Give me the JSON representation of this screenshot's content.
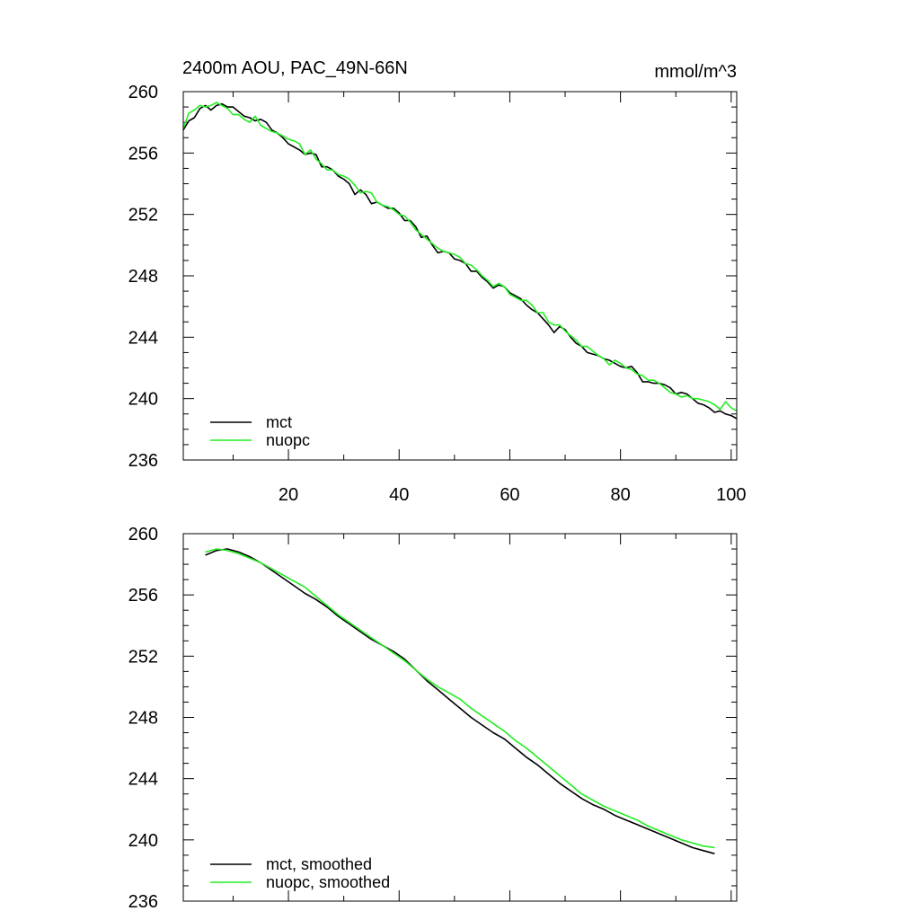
{
  "chart_data": [
    {
      "type": "line",
      "title": "2400m AOU, PAC_49N-66N",
      "units": "mmol/m^3",
      "xlim": [
        1,
        101
      ],
      "ylim": [
        236,
        260
      ],
      "yticks": [
        236,
        240,
        244,
        248,
        252,
        256,
        260
      ],
      "xticks": [
        20,
        40,
        60,
        80,
        100
      ],
      "show_xtick_labels": true,
      "grid": false,
      "legend": "bottom-left",
      "series": [
        {
          "name": "mct",
          "color": "#000000",
          "x": [
            1,
            2,
            3,
            4,
            5,
            6,
            7,
            8,
            9,
            10,
            11,
            12,
            13,
            14,
            15,
            16,
            17,
            18,
            19,
            20,
            21,
            22,
            23,
            24,
            25,
            26,
            27,
            28,
            29,
            30,
            31,
            32,
            33,
            34,
            35,
            36,
            37,
            38,
            39,
            40,
            41,
            42,
            43,
            44,
            45,
            46,
            47,
            48,
            49,
            50,
            51,
            52,
            53,
            54,
            55,
            56,
            57,
            58,
            59,
            60,
            61,
            62,
            63,
            64,
            65,
            66,
            67,
            68,
            69,
            70,
            71,
            72,
            73,
            74,
            75,
            76,
            77,
            78,
            79,
            80,
            81,
            82,
            83,
            84,
            85,
            86,
            87,
            88,
            89,
            90,
            91,
            92,
            93,
            94,
            95,
            96,
            97,
            98,
            99,
            100,
            101
          ],
          "values": [
            257.5,
            258.1,
            258.3,
            258.9,
            259.1,
            258.8,
            259.1,
            259.2,
            259.0,
            259.0,
            258.7,
            258.4,
            258.3,
            258.1,
            258.2,
            258.0,
            257.5,
            257.3,
            257.0,
            256.6,
            256.4,
            256.2,
            255.9,
            256.0,
            255.9,
            255.1,
            255.1,
            254.9,
            254.5,
            254.3,
            254.0,
            253.3,
            253.6,
            253.3,
            252.7,
            252.8,
            252.6,
            252.4,
            252.4,
            252.1,
            251.6,
            251.6,
            251.2,
            250.5,
            250.6,
            250.0,
            249.5,
            249.6,
            249.5,
            249.1,
            249.0,
            248.8,
            248.3,
            248.3,
            247.9,
            247.6,
            247.2,
            247.4,
            247.3,
            246.9,
            246.7,
            246.5,
            246.1,
            245.8,
            245.6,
            245.2,
            244.8,
            244.3,
            244.7,
            244.5,
            244.0,
            243.6,
            243.4,
            243.0,
            242.9,
            242.8,
            242.6,
            242.5,
            242.3,
            242.1,
            242.0,
            242.1,
            241.7,
            241.1,
            241.1,
            241.0,
            241.0,
            240.9,
            240.7,
            240.3,
            240.4,
            240.3,
            240.0,
            239.7,
            239.6,
            239.4,
            239.1,
            239.2,
            239.0,
            238.9,
            238.7
          ]
        },
        {
          "name": "nuopc",
          "color": "#22ee22",
          "x": [
            1,
            2,
            3,
            4,
            5,
            6,
            7,
            8,
            9,
            10,
            11,
            12,
            13,
            14,
            15,
            16,
            17,
            18,
            19,
            20,
            21,
            22,
            23,
            24,
            25,
            26,
            27,
            28,
            29,
            30,
            31,
            32,
            33,
            34,
            35,
            36,
            37,
            38,
            39,
            40,
            41,
            42,
            43,
            44,
            45,
            46,
            47,
            48,
            49,
            50,
            51,
            52,
            53,
            54,
            55,
            56,
            57,
            58,
            59,
            60,
            61,
            62,
            63,
            64,
            65,
            66,
            67,
            68,
            69,
            70,
            71,
            72,
            73,
            74,
            75,
            76,
            77,
            78,
            79,
            80,
            81,
            82,
            83,
            84,
            85,
            86,
            87,
            88,
            89,
            90,
            91,
            92,
            93,
            94,
            95,
            96,
            97,
            98,
            99,
            100,
            101
          ],
          "values": [
            257.6,
            258.6,
            258.8,
            259.1,
            259.0,
            259.1,
            259.3,
            259.1,
            258.9,
            258.5,
            258.5,
            258.2,
            258.0,
            258.4,
            257.8,
            257.6,
            257.4,
            257.3,
            257.1,
            256.9,
            256.8,
            256.6,
            255.9,
            256.2,
            255.6,
            255.3,
            254.9,
            254.9,
            254.6,
            254.5,
            254.3,
            253.9,
            253.4,
            253.5,
            253.4,
            252.8,
            252.6,
            252.5,
            252.3,
            252.0,
            251.9,
            251.5,
            251.0,
            250.7,
            250.4,
            250.1,
            249.8,
            249.6,
            249.5,
            249.4,
            249.2,
            248.8,
            248.7,
            248.4,
            248.0,
            247.7,
            247.3,
            247.5,
            247.3,
            246.8,
            246.6,
            246.4,
            246.4,
            246.1,
            245.6,
            245.6,
            245.0,
            244.8,
            244.8,
            244.4,
            244.1,
            243.8,
            243.4,
            243.4,
            243.1,
            242.8,
            242.6,
            242.2,
            242.5,
            242.3,
            242.0,
            241.9,
            241.6,
            241.5,
            241.2,
            241.2,
            241.0,
            240.7,
            240.4,
            240.3,
            240.1,
            240.2,
            240.0,
            240.0,
            239.9,
            239.8,
            239.6,
            239.3,
            239.8,
            239.4,
            239.2
          ]
        }
      ]
    },
    {
      "type": "line",
      "title": "",
      "xlim": [
        1,
        101
      ],
      "ylim": [
        236,
        260
      ],
      "yticks": [
        236,
        240,
        244,
        248,
        252,
        256,
        260
      ],
      "xticks": [
        20,
        40,
        60,
        80,
        100
      ],
      "show_xtick_labels": false,
      "grid": false,
      "legend": "bottom-left",
      "series": [
        {
          "name": "mct, smoothed",
          "color": "#000000",
          "x": [
            5,
            7,
            9,
            11,
            13,
            15,
            17,
            19,
            21,
            23,
            25,
            27,
            29,
            31,
            33,
            35,
            37,
            39,
            41,
            43,
            45,
            47,
            49,
            51,
            53,
            55,
            57,
            59,
            61,
            63,
            65,
            67,
            69,
            71,
            73,
            75,
            77,
            79,
            81,
            83,
            85,
            87,
            89,
            91,
            93,
            95,
            97
          ],
          "values": [
            258.6,
            258.9,
            259.0,
            258.8,
            258.5,
            258.1,
            257.6,
            257.1,
            256.6,
            256.1,
            255.7,
            255.2,
            254.6,
            254.1,
            253.6,
            253.1,
            252.7,
            252.3,
            251.8,
            251.1,
            250.4,
            249.8,
            249.2,
            248.6,
            248.0,
            247.5,
            247.0,
            246.6,
            246.0,
            245.4,
            244.9,
            244.3,
            243.7,
            243.2,
            242.7,
            242.3,
            242.0,
            241.6,
            241.3,
            241.0,
            240.7,
            240.4,
            240.1,
            239.8,
            239.5,
            239.3,
            239.1
          ]
        },
        {
          "name": "nuopc, smoothed",
          "color": "#22ee22",
          "x": [
            5,
            7,
            9,
            11,
            13,
            15,
            17,
            19,
            21,
            23,
            25,
            27,
            29,
            31,
            33,
            35,
            37,
            39,
            41,
            43,
            45,
            47,
            49,
            51,
            53,
            55,
            57,
            59,
            61,
            63,
            65,
            67,
            69,
            71,
            73,
            75,
            77,
            79,
            81,
            83,
            85,
            87,
            89,
            91,
            93,
            95,
            97
          ],
          "values": [
            258.8,
            259.0,
            258.9,
            258.7,
            258.4,
            258.1,
            257.7,
            257.3,
            256.9,
            256.5,
            255.9,
            255.3,
            254.7,
            254.2,
            253.7,
            253.2,
            252.7,
            252.2,
            251.7,
            251.1,
            250.5,
            250.0,
            249.6,
            249.2,
            248.6,
            248.1,
            247.6,
            247.1,
            246.5,
            246.0,
            245.4,
            244.8,
            244.2,
            243.6,
            243.0,
            242.6,
            242.2,
            241.9,
            241.6,
            241.3,
            240.9,
            240.6,
            240.3,
            240.0,
            239.8,
            239.6,
            239.5
          ]
        }
      ]
    }
  ]
}
